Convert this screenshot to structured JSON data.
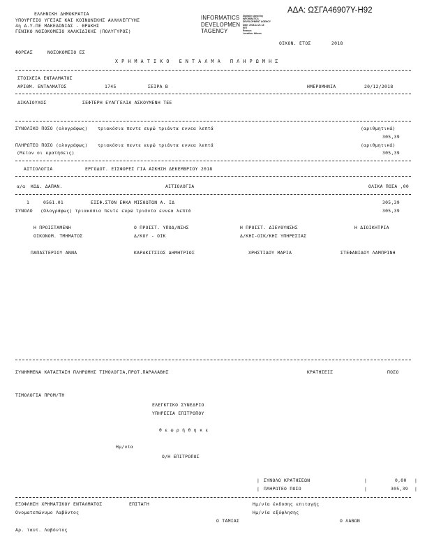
{
  "header": {
    "lines": [
      "ΕΛΛΗΝΙΚΗ ΔΗΜΟΚΡΑΤΙΑ",
      "ΥΠΟΥΡΓΕΙΟ ΥΓΕΙΑΣ ΚΑΙ ΚΟΙΝΩΝΙΚΗΣ ΑΛΛΗΛΕΓΓΥΗΣ",
      "4η Δ.Υ.ΠΕ ΜΑΚΕΔΟΝΙΑΣ - ΘΡΑΚΗΣ",
      "ΓΕΝΙΚΟ ΝΟΣΟΚΟΜΕΙΟ ΧΑΛΚΙΔΙΚΗΣ (ΠΟΛΥΓΥΡΟΣ)"
    ],
    "ada": "ΑΔΑ: ΩΣΓΑ46907Υ-Η92",
    "stamp": {
      "name_lines": [
        "INFORMATICS",
        "DEVELOPMEN",
        "TAGENCY"
      ],
      "meta_lines": [
        "Digitally signed by",
        "INFORMATICS",
        "DEVELOPMENT AGENCY",
        "Date: 2018.12.21 13:",
        "EET",
        "Reason:",
        "Location: Athens"
      ]
    },
    "fiscal_year_label": "ΟΙΚΟΝ. ΕΤΟΣ",
    "fiscal_year": "2018",
    "agency_label": "ΦΟΡΕΑΣ",
    "agency": "ΝΟΣΟΚΟΜΕΙΟ ΕΣ",
    "title": "ΧΡΗΜΑΤΙΚΟ ΕΝΤΑΛΜΑ ΠΛΗΡΩΜΗΣ"
  },
  "order": {
    "section_label": "ΣΤΟΙΧΕΙΑ ΕΝΤΑΛΜΑΤΟΣ",
    "number_label": "ΑΡΙΘΜ. ΕΝΤΑΛΜΑΤΟΣ",
    "number": "1745",
    "series": "ΣΕΙΡΑ Β",
    "date_label": "ΗΜΕΡΟΜΗΝΙΑ",
    "date": "20/12/2018",
    "beneficiary_label": "ΔΙΚΑΙΟΥΧΟΣ",
    "beneficiary": "ΣΕΦΤΕΡΗ ΕΥΑΓΓΕΛΙΑ ΑΣΚΟΥΜΕΝΗ ΤΕΕ"
  },
  "amounts": {
    "total_label": "ΣΥΝΟΛΙΚΟ ΠΟΣΟ",
    "payable_label": "ΠΛΗΡΩΤΕΟ ΠΟΣΟ",
    "in_words_label": "(ολογράφως)",
    "in_words": "τριακόσια πεντε ευρώ τριάντα εννεα λεπτά",
    "numeric_label": "(αριθμητικά)",
    "less_deductions": "(Μείον οι κρατήσεις)",
    "total": "305,39",
    "payable": "305,39"
  },
  "justification": {
    "label": "ΑΙΤΙΟΛΟΓΙΑ",
    "text": "ΕΡΓΟΔΟΤ. ΕΙΣΦΟΡΕΣ ΓΙΑ ΑΣΚΗΣΗ ΔΕΚΕΜΒΡΙΟΥ 2018"
  },
  "table": {
    "headers": [
      "α/α",
      "ΚΩΔ. ΔΑΠΑΝ.",
      "ΑΙΤΙΟΛΟΓΙΑ",
      "ΟΛΙΚΑ ΠΟΣΑ ,00"
    ],
    "rows": [
      {
        "no": "1",
        "code": "0561.01",
        "desc": "ΕΙΣΦ.ΣΤΟΝ ΕΦΚΑ ΜΙΣΘΩΤΩΝ Α. ΙΔ",
        "amount": "305,39"
      }
    ],
    "total_label": "ΣΥΝΟΛΟ",
    "total_words": "(Ολογράφως) τριακόσια πεντε ευρώ τριάντα εννεα λεπτά",
    "total_amount": "305,39"
  },
  "signatures": [
    {
      "role": "Η ΠΡΟΙΣΤΑΜΕΝΗ",
      "role2": "ΟΙΚΟΝΟΜ. ΤΜΗΜΑΤΟΣ",
      "name": "ΠΑΠΑΣΤΕΡΙΟΥ ΑΝΝΑ"
    },
    {
      "role": "Ο ΠΡΟΙΣΤ. ΥΠΟΔ/ΝΣΗΣ",
      "role2": "Δ/ΚΟΥ - ΟΙΚ",
      "name": "ΚΑΡΑΚΙΤΣΙΟΣ ΔΗΜΗΤΡΙΟΣ"
    },
    {
      "role": "Η ΠΡΟΙΣΤ. ΔΙΕΥΘΥΝΣΗΣ",
      "role2": "Δ/ΚΗΣ-ΟΙΚ/ΚΗΣ ΥΠΗΡΕΣΙΑΣ",
      "name": "ΧΡΗΣΤΙΔΟΥ ΜΑΡΙΑ"
    },
    {
      "role": "Η ΔΙΟΙΚΗΤΡΙΑ",
      "role2": "",
      "name": "ΣΤΕΦΑΝΙΔΟΥ ΛΑΜΠΡΙΝΗ"
    }
  ],
  "attachments": {
    "label": "ΣΥΝΗΜΜΕΝΑ ΚΑΤΑΣΤΑΣΗ ΠΛΗΡΩΜΗΣ ΤΙΜΟΛΟΓΙΑ,ΠΡΩΤ.ΠΑΡΑΛΑΒΗΣ",
    "deductions": "ΚΡΑΤΗΣΕΙΣ",
    "amount": "ΠΟΣΟ",
    "invoices": "ΤΙΜΟΛΟΓΙΑ ΠΡΟΜ/ΤΗ"
  },
  "audit": {
    "court": "ΕΛΕΓΚΤΙΚΟ ΣΥΝΕΔΡΙΟ",
    "service": "ΥΠΗΡΕΣΙΑ ΕΠΙΤΡΟΠΟΥ",
    "approved": "θ ε ω ρ ή θ η κ ε",
    "date_label": "Ημ/νία",
    "commissioner": "Ο/Η ΕΠΙΤΡΟΠΟΣ"
  },
  "summary": {
    "deductions_label": "ΣΥΝΟΛΟ ΚΡΑΤΗΣΕΩΝ",
    "deductions": "0,00",
    "payable_label": "ΠΛΗΡΩΤΕΟ ΠΟΣΟ",
    "payable": "305,39",
    "bar": "|"
  },
  "settlement": {
    "label": "ΕΞΟΦΛΗΣΗ ΧΡΗΜΑΤΙΚΟΥ ΕΝΤΑΛΜΑΤΟΣ",
    "cheque": "ΕΠΙΤΑΓΗ",
    "cheque_date": "Ημ/νία έκδοσης επιταγής",
    "recipient_name": "Ονοματεπώνυμο Λαβόντος",
    "payment_date": "Ημ/νία εξόφλησης",
    "cashier": "Ο ΤΑΜΙΑΣ",
    "receiver": "Ο ΛΑΒΩΝ",
    "recipient_id": "Αρ. ταυτ. Λαβόντος"
  }
}
